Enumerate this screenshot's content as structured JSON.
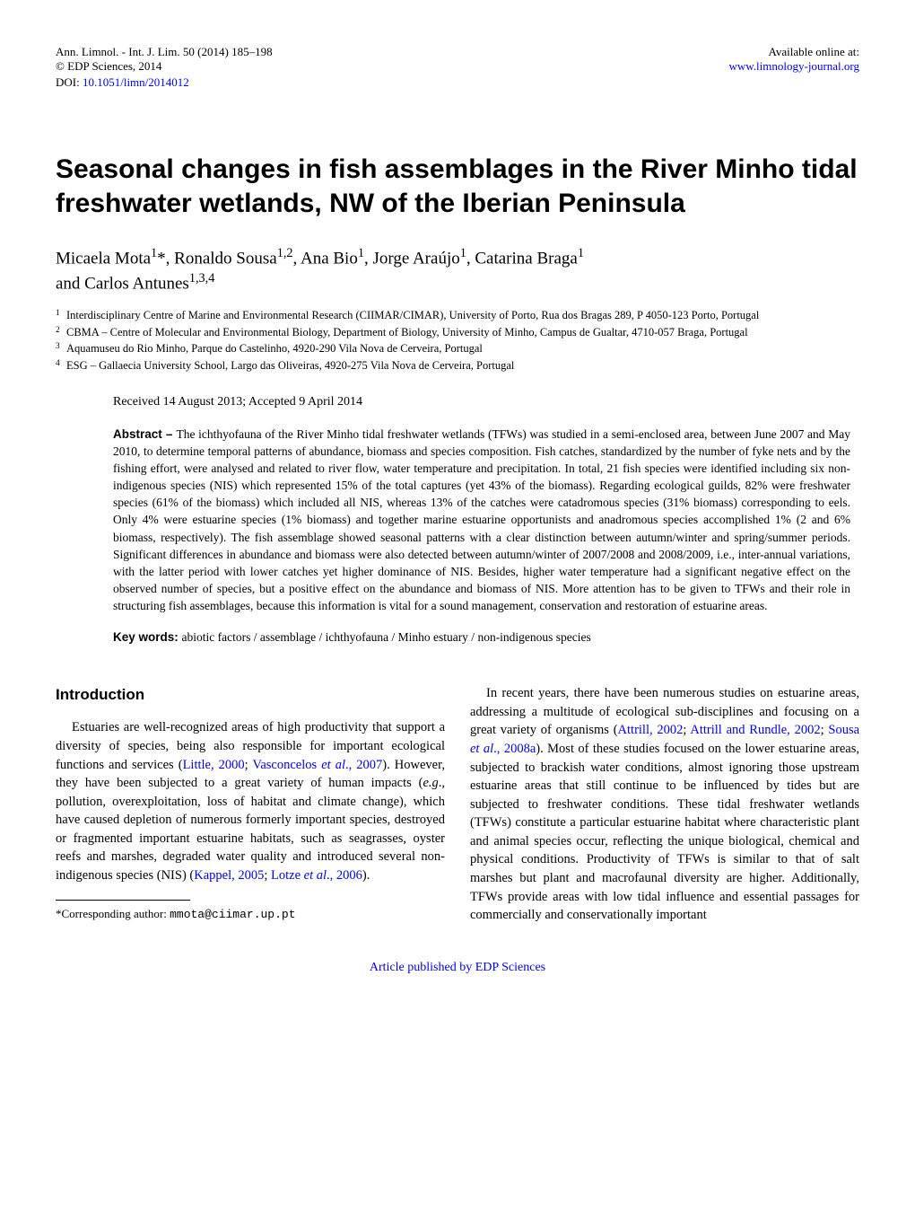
{
  "header": {
    "journal_line": "Ann. Limnol. - Int. J. Lim. 50 (2014) 185–198",
    "copyright_line": "© EDP Sciences, 2014",
    "available_label": "Available online at:",
    "available_url": "www.limnology-journal.org",
    "doi_label": "DOI: ",
    "doi_value": "10.1051/limn/2014012"
  },
  "title": "Seasonal changes in fish assemblages in the River Minho tidal freshwater wetlands, NW of the Iberian Peninsula",
  "authors_line1": "Micaela Mota",
  "authors_sup1": "1",
  "authors_ast": "*, Ronaldo Sousa",
  "authors_sup2": "1,2",
  "authors_p2": ", Ana Bio",
  "authors_sup3": "1",
  "authors_p3": ", Jorge Araújo",
  "authors_sup4": "1",
  "authors_p4": ", Catarina Braga",
  "authors_sup5": "1",
  "authors_line2_pre": "and Carlos Antunes",
  "authors_sup6": "1,3,4",
  "affiliations": {
    "a1": "Interdisciplinary Centre of Marine and Environmental Research (CIIMAR/CIMAR), University of Porto, Rua dos Bragas 289, P 4050-123 Porto, Portugal",
    "a2": "CBMA – Centre of Molecular and Environmental Biology, Department of Biology, University of Minho, Campus de Gualtar, 4710-057 Braga, Portugal",
    "a3": "Aquamuseu do Rio Minho, Parque do Castelinho, 4920-290 Vila Nova de Cerveira, Portugal",
    "a4": "ESG – Gallaecia University School, Largo das Oliveiras, 4920-275 Vila Nova de Cerveira, Portugal"
  },
  "received": "Received 14 August 2013; Accepted 9 April 2014",
  "abstract": {
    "label": "Abstract – ",
    "text": "The ichthyofauna of the River Minho tidal freshwater wetlands (TFWs) was studied in a semi-enclosed area, between June 2007 and May 2010, to determine temporal patterns of abundance, biomass and species composition. Fish catches, standardized by the number of fyke nets and by the fishing effort, were analysed and related to river flow, water temperature and precipitation. In total, 21 fish species were identified including six non-indigenous species (NIS) which represented 15% of the total captures (yet 43% of the biomass). Regarding ecological guilds, 82% were freshwater species (61% of the biomass) which included all NIS, whereas 13% of the catches were catadromous species (31% biomass) corresponding to eels. Only 4% were estuarine species (1% biomass) and together marine estuarine opportunists and anadromous species accomplished 1% (2 and 6% biomass, respectively). The fish assemblage showed seasonal patterns with a clear distinction between autumn/winter and spring/summer periods. Significant differences in abundance and biomass were also detected between autumn/winter of 2007/2008 and 2008/2009, i.e., inter-annual variations, with the latter period with lower catches yet higher dominance of NIS. Besides, higher water temperature had a significant negative effect on the observed number of species, but a positive effect on the abundance and biomass of NIS. More attention has to be given to TFWs and their role in structuring fish assemblages, because this information is vital for a sound management, conservation and restoration of estuarine areas."
  },
  "keywords": {
    "label": "Key words: ",
    "text": "abiotic factors / assemblage / ichthyofauna / Minho estuary / non-indigenous species"
  },
  "intro": {
    "heading": "Introduction",
    "col1_p1_a": "Estuaries are well-recognized areas of high productivity that support a diversity of species, being also responsible for important ecological functions and services (",
    "col1_r1": "Little, 2000",
    "col1_p1_b": "; ",
    "col1_r2": "Vasconcelos ",
    "col1_r2_it": "et al",
    "col1_r2_c": "., 2007",
    "col1_p1_c": "). However, they have been subjected to a great variety of human impacts (",
    "col1_eg": "e.g",
    "col1_p1_d": "., pollution, overexploitation, loss of habitat and climate change), which have caused depletion of numerous formerly important species, destroyed or fragmented important estuarine habitats, such as seagrasses, oyster reefs and marshes, degraded water quality and introduced several non-indigenous species (NIS) (",
    "col1_r3": "Kappel, 2005",
    "col1_p1_e": "; ",
    "col1_r4": "Lotze ",
    "col1_r4_it": "et al",
    "col1_r4_c": "., 2006",
    "col1_p1_f": ").",
    "col2_p1_a": "In recent years, there have been numerous studies on estuarine areas, addressing a multitude of ecological sub-disciplines and focusing on a great variety of organisms (",
    "col2_r1": "Attrill, 2002",
    "col2_p1_b": "; ",
    "col2_r2": "Attrill and Rundle, 2002",
    "col2_p1_c": "; ",
    "col2_r3": "Sousa ",
    "col2_r3_it": "et al",
    "col2_r3_c": "., 2008a",
    "col2_p1_d": "). Most of these studies focused on the lower estuarine areas, subjected to brackish water conditions, almost ignoring those upstream estuarine areas that still continue to be influenced by tides but are subjected to freshwater conditions. These tidal freshwater wetlands (TFWs) constitute a particular estuarine habitat where characteristic plant and animal species occur, reflecting the unique biological, chemical and physical conditions. Productivity of TFWs is similar to that of salt marshes but plant and macrofaunal diversity are higher. Additionally, TFWs provide areas with low tidal influence and essential passages for commercially and conservationally important"
  },
  "corresponding": {
    "label": "*Corresponding author: ",
    "email": "mmota@ciimar.up.pt"
  },
  "footer": "Article published by EDP Sciences"
}
